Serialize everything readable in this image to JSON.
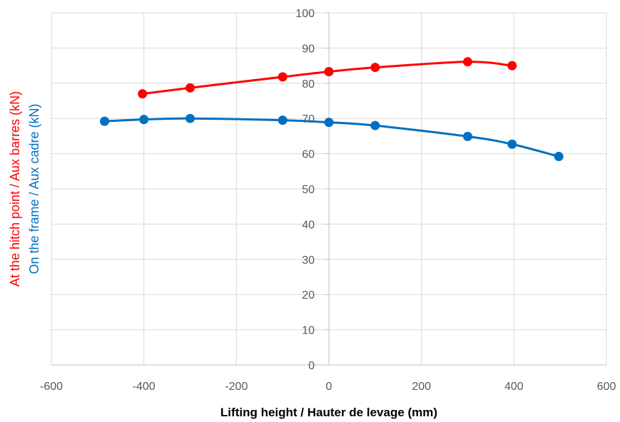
{
  "chart_data": {
    "type": "line",
    "title": "",
    "xlabel": "Lifting height / Hauter de levage (mm)",
    "ylabel_parts": [
      {
        "text": "At the hitch point / Aux barres (kN)",
        "color": "#ff0000"
      },
      {
        "text": "On the frame / Aux cadre (kN)",
        "color": "#0070c0"
      }
    ],
    "xlim": [
      -600,
      600
    ],
    "ylim": [
      0,
      100
    ],
    "x_ticks": [
      -600,
      -400,
      -200,
      0,
      200,
      400,
      600
    ],
    "y_ticks": [
      0,
      10,
      20,
      30,
      40,
      50,
      60,
      70,
      80,
      90,
      100
    ],
    "grid": true,
    "legend": "none",
    "series": [
      {
        "color": "#ff0000",
        "x": [
          -403,
          -300,
          -100,
          0,
          100,
          300,
          396
        ],
        "y": [
          77,
          78.7,
          81.8,
          83.3,
          84.5,
          86.1,
          85
        ]
      },
      {
        "color": "#0070c0",
        "x": [
          -485,
          -400,
          -300,
          -100,
          0,
          100,
          300,
          396,
          497
        ],
        "y": [
          69.2,
          69.7,
          70,
          69.5,
          68.9,
          68,
          64.9,
          62.7,
          59.2
        ]
      }
    ]
  }
}
